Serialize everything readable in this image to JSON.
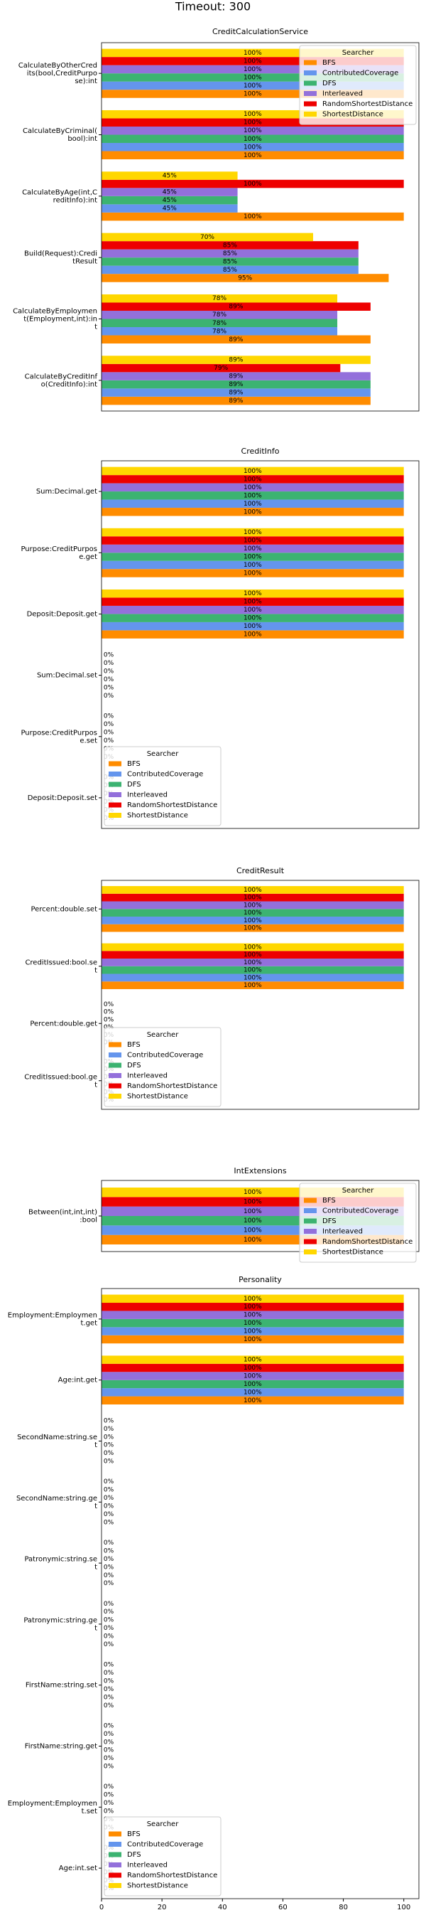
{
  "figure_title": "Timeout: 300",
  "chart_data": [
    {
      "type": "barh",
      "title": "CreditCalculationService",
      "categories": [
        "CalculateByOtherCredits(bool,CreditPurpose):int",
        "CalculateByCriminal(bool):int",
        "CalculateByAge(int,CreditInfo):int",
        "Build(Request):CreditResult",
        "CalculateByEmployment(Employment,int):int",
        "CalculateByCreditInfo(CreditInfo):int"
      ],
      "series": [
        {
          "name": "BFS",
          "color": "#ff8c00",
          "values": [
            100,
            100,
            100,
            95,
            89,
            89
          ],
          "value_labels": [
            "100%",
            "100%",
            "100%",
            "95%",
            "89%",
            "89%"
          ]
        },
        {
          "name": "ContributedCoverage",
          "color": "#6495ed",
          "values": [
            100,
            100,
            45,
            85,
            78,
            89
          ],
          "value_labels": [
            "100%",
            "100%",
            "45%",
            "85%",
            "78%",
            "89%"
          ]
        },
        {
          "name": "DFS",
          "color": "#3cb371",
          "values": [
            100,
            100,
            45,
            85,
            78,
            89
          ],
          "value_labels": [
            "100%",
            "100%",
            "45%",
            "85%",
            "78%",
            "89%"
          ]
        },
        {
          "name": "Interleaved",
          "color": "#9370db",
          "values": [
            100,
            100,
            45,
            85,
            78,
            89
          ],
          "value_labels": [
            "100%",
            "100%",
            "45%",
            "85%",
            "78%",
            "89%"
          ]
        },
        {
          "name": "RandomShortestDistance",
          "color": "#ee0000",
          "values": [
            100,
            100,
            100,
            85,
            89,
            79
          ],
          "value_labels": [
            "100%",
            "100%",
            "100%",
            "85%",
            "89%",
            "79%"
          ]
        },
        {
          "name": "ShortestDistance",
          "color": "#ffd700",
          "values": [
            100,
            100,
            45,
            70,
            78,
            89
          ],
          "value_labels": [
            "100%",
            "100%",
            "45%",
            "70%",
            "78%",
            "89%"
          ]
        }
      ],
      "xlim": [
        0,
        105
      ],
      "legend_title": "Searcher",
      "legend_loc": "upper right"
    },
    {
      "type": "barh",
      "title": "CreditInfo",
      "categories": [
        "Sum:Decimal.get",
        "Purpose:CreditPurpose.get",
        "Deposit:Deposit.get",
        "Sum:Decimal.set",
        "Purpose:CreditPurpose.set",
        "Deposit:Deposit.set"
      ],
      "series": [
        {
          "name": "BFS",
          "color": "#ff8c00",
          "values": [
            100,
            100,
            100,
            0,
            0,
            0
          ],
          "value_labels": [
            "100%",
            "100%",
            "100%",
            "0%",
            "0%",
            "0%"
          ]
        },
        {
          "name": "ContributedCoverage",
          "color": "#6495ed",
          "values": [
            100,
            100,
            100,
            0,
            0,
            0
          ],
          "value_labels": [
            "100%",
            "100%",
            "100%",
            "0%",
            "0%",
            "0%"
          ]
        },
        {
          "name": "DFS",
          "color": "#3cb371",
          "values": [
            100,
            100,
            100,
            0,
            0,
            0
          ],
          "value_labels": [
            "100%",
            "100%",
            "100%",
            "0%",
            "0%",
            "0%"
          ]
        },
        {
          "name": "Interleaved",
          "color": "#9370db",
          "values": [
            100,
            100,
            100,
            0,
            0,
            0
          ],
          "value_labels": [
            "100%",
            "100%",
            "100%",
            "0%",
            "0%",
            "0%"
          ]
        },
        {
          "name": "RandomShortestDistance",
          "color": "#ee0000",
          "values": [
            100,
            100,
            100,
            0,
            0,
            0
          ],
          "value_labels": [
            "100%",
            "100%",
            "100%",
            "0%",
            "0%",
            "0%"
          ]
        },
        {
          "name": "ShortestDistance",
          "color": "#ffd700",
          "values": [
            100,
            100,
            100,
            0,
            0,
            0
          ],
          "value_labels": [
            "100%",
            "100%",
            "100%",
            "0%",
            "0%",
            "0%"
          ]
        }
      ],
      "xlim": [
        0,
        105
      ],
      "legend_title": "Searcher",
      "legend_loc": "lower left"
    },
    {
      "type": "barh",
      "title": "CreditResult",
      "categories": [
        "Percent:double.set",
        "CreditIssued:bool.set",
        "Percent:double.get",
        "CreditIssued:bool.get"
      ],
      "series": [
        {
          "name": "BFS",
          "color": "#ff8c00",
          "values": [
            100,
            100,
            0,
            0
          ],
          "value_labels": [
            "100%",
            "100%",
            "0%",
            "0%"
          ]
        },
        {
          "name": "ContributedCoverage",
          "color": "#6495ed",
          "values": [
            100,
            100,
            0,
            0
          ],
          "value_labels": [
            "100%",
            "100%",
            "0%",
            "0%"
          ]
        },
        {
          "name": "DFS",
          "color": "#3cb371",
          "values": [
            100,
            100,
            0,
            0
          ],
          "value_labels": [
            "100%",
            "100%",
            "0%",
            "0%"
          ]
        },
        {
          "name": "Interleaved",
          "color": "#9370db",
          "values": [
            100,
            100,
            0,
            0
          ],
          "value_labels": [
            "100%",
            "100%",
            "0%",
            "0%"
          ]
        },
        {
          "name": "RandomShortestDistance",
          "color": "#ee0000",
          "values": [
            100,
            100,
            0,
            0
          ],
          "value_labels": [
            "100%",
            "100%",
            "0%",
            "0%"
          ]
        },
        {
          "name": "ShortestDistance",
          "color": "#ffd700",
          "values": [
            100,
            100,
            0,
            0
          ],
          "value_labels": [
            "100%",
            "100%",
            "0%",
            "0%"
          ]
        }
      ],
      "xlim": [
        0,
        105
      ],
      "legend_title": "Searcher",
      "legend_loc": "lower left"
    },
    {
      "type": "barh",
      "title": "IntExtensions",
      "categories": [
        "Between(int,int,int):bool"
      ],
      "series": [
        {
          "name": "BFS",
          "color": "#ff8c00",
          "values": [
            100
          ],
          "value_labels": [
            "100%"
          ]
        },
        {
          "name": "ContributedCoverage",
          "color": "#6495ed",
          "values": [
            100
          ],
          "value_labels": [
            "100%"
          ]
        },
        {
          "name": "DFS",
          "color": "#3cb371",
          "values": [
            100
          ],
          "value_labels": [
            "100%"
          ]
        },
        {
          "name": "Interleaved",
          "color": "#9370db",
          "values": [
            100
          ],
          "value_labels": [
            "100%"
          ]
        },
        {
          "name": "RandomShortestDistance",
          "color": "#ee0000",
          "values": [
            100
          ],
          "value_labels": [
            "100%"
          ]
        },
        {
          "name": "ShortestDistance",
          "color": "#ffd700",
          "values": [
            100
          ],
          "value_labels": [
            "100%"
          ]
        }
      ],
      "xlim": [
        0,
        105
      ],
      "legend_title": "Searcher",
      "legend_loc": "upper right"
    },
    {
      "type": "barh",
      "title": "Personality",
      "categories": [
        "Employment:Employment.get",
        "Age:int.get",
        "SecondName:string.set",
        "SecondName:string.get",
        "Patronymic:string.set",
        "Patronymic:string.get",
        "FirstName:string.set",
        "FirstName:string.get",
        "Employment:Employment.set",
        "Age:int.set"
      ],
      "series": [
        {
          "name": "BFS",
          "color": "#ff8c00",
          "values": [
            100,
            100,
            0,
            0,
            0,
            0,
            0,
            0,
            0,
            0
          ],
          "value_labels": [
            "100%",
            "100%",
            "0%",
            "0%",
            "0%",
            "0%",
            "0%",
            "0%",
            "0%",
            "0%"
          ]
        },
        {
          "name": "ContributedCoverage",
          "color": "#6495ed",
          "values": [
            100,
            100,
            0,
            0,
            0,
            0,
            0,
            0,
            0,
            0
          ],
          "value_labels": [
            "100%",
            "100%",
            "0%",
            "0%",
            "0%",
            "0%",
            "0%",
            "0%",
            "0%",
            "0%"
          ]
        },
        {
          "name": "DFS",
          "color": "#3cb371",
          "values": [
            100,
            100,
            0,
            0,
            0,
            0,
            0,
            0,
            0,
            0
          ],
          "value_labels": [
            "100%",
            "100%",
            "0%",
            "0%",
            "0%",
            "0%",
            "0%",
            "0%",
            "0%",
            "0%"
          ]
        },
        {
          "name": "Interleaved",
          "color": "#9370db",
          "values": [
            100,
            100,
            0,
            0,
            0,
            0,
            0,
            0,
            0,
            0
          ],
          "value_labels": [
            "100%",
            "100%",
            "0%",
            "0%",
            "0%",
            "0%",
            "0%",
            "0%",
            "0%",
            "0%"
          ]
        },
        {
          "name": "RandomShortestDistance",
          "color": "#ee0000",
          "values": [
            100,
            100,
            0,
            0,
            0,
            0,
            0,
            0,
            0,
            0
          ],
          "value_labels": [
            "100%",
            "100%",
            "0%",
            "0%",
            "0%",
            "0%",
            "0%",
            "0%",
            "0%",
            "0%"
          ]
        },
        {
          "name": "ShortestDistance",
          "color": "#ffd700",
          "values": [
            100,
            100,
            0,
            0,
            0,
            0,
            0,
            0,
            0,
            0
          ],
          "value_labels": [
            "100%",
            "100%",
            "0%",
            "0%",
            "0%",
            "0%",
            "0%",
            "0%",
            "0%",
            "0%"
          ]
        }
      ],
      "xlim": [
        0,
        105
      ],
      "xticks": [
        0,
        20,
        40,
        60,
        80,
        100
      ],
      "legend_title": "Searcher",
      "legend_loc": "lower left"
    }
  ]
}
